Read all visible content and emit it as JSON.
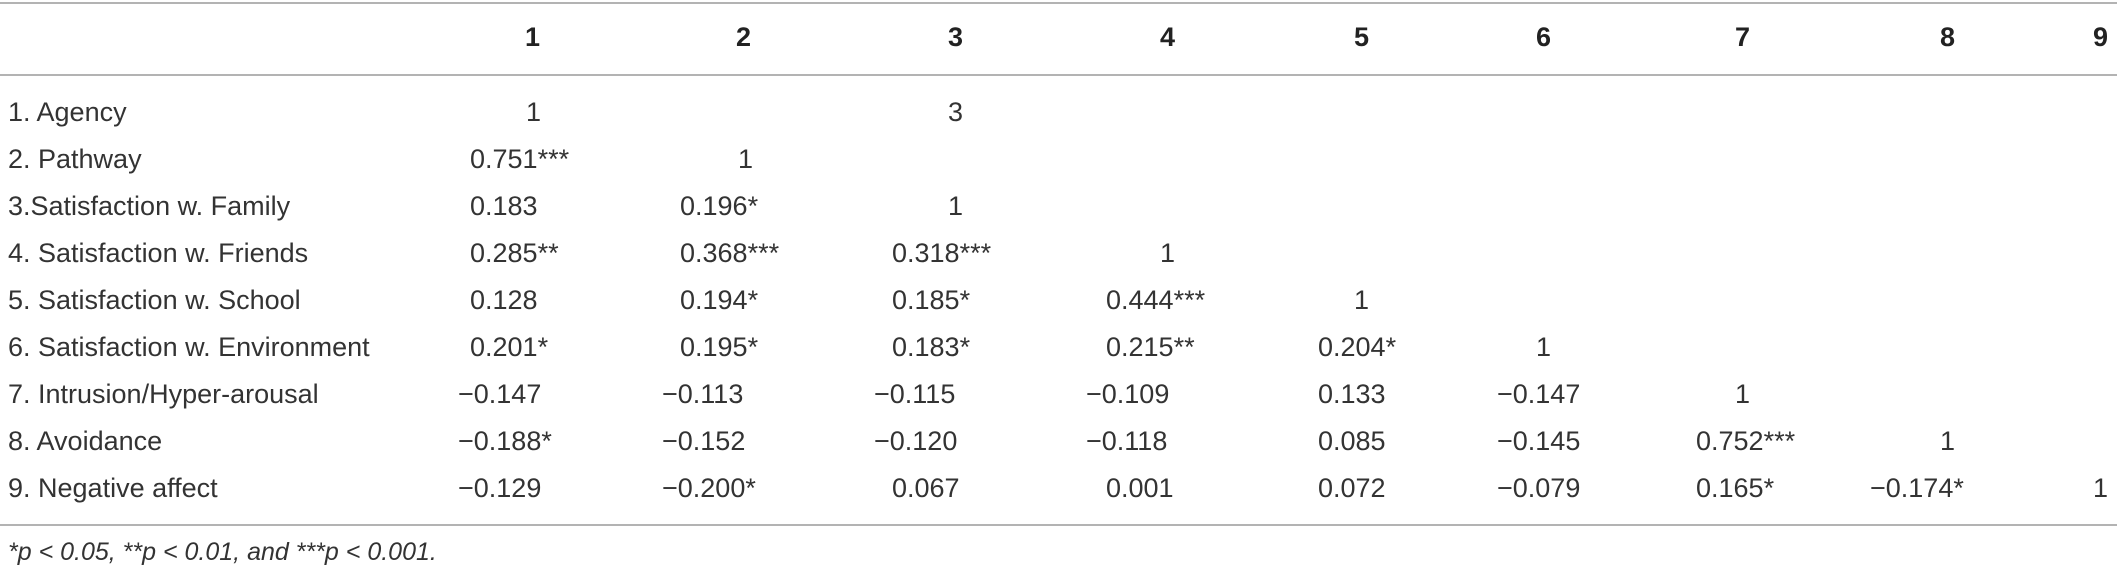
{
  "table": {
    "headers": [
      "1",
      "2",
      "3",
      "4",
      "5",
      "6",
      "7",
      "8",
      "9"
    ],
    "rows": [
      {
        "label": "1. Agency",
        "cells": [
          "1",
          "",
          "3",
          "",
          "",
          "",
          "",
          "",
          ""
        ]
      },
      {
        "label": "2. Pathway",
        "cells": [
          "0.751***",
          "1",
          "",
          "",
          "",
          "",
          "",
          "",
          ""
        ]
      },
      {
        "label": "3.Satisfaction w. Family",
        "cells": [
          "0.183",
          "0.196*",
          "1",
          "",
          "",
          "",
          "",
          "",
          ""
        ]
      },
      {
        "label": "4. Satisfaction w. Friends",
        "cells": [
          "0.285**",
          "0.368***",
          "0.318***",
          "1",
          "",
          "",
          "",
          "",
          ""
        ]
      },
      {
        "label": "5. Satisfaction w. School",
        "cells": [
          "0.128",
          "0.194*",
          "0.185*",
          "0.444***",
          "1",
          "",
          "",
          "",
          ""
        ]
      },
      {
        "label": "6. Satisfaction w. Environment",
        "cells": [
          "0.201*",
          "0.195*",
          "0.183*",
          "0.215**",
          "0.204*",
          "1",
          "",
          "",
          ""
        ]
      },
      {
        "label": "7. Intrusion/Hyper-arousal",
        "cells": [
          "−0.147",
          "−0.113",
          "−0.115",
          "−0.109",
          "0.133",
          "−0.147",
          "1",
          "",
          ""
        ]
      },
      {
        "label": "8. Avoidance",
        "cells": [
          "−0.188*",
          "−0.152",
          "−0.120",
          "−0.118",
          "0.085",
          "−0.145",
          "0.752***",
          "1",
          ""
        ]
      },
      {
        "label": "9. Negative affect",
        "cells": [
          "−0.129",
          "−0.200*",
          "0.067",
          "0.001",
          "0.072",
          "−0.079",
          "0.165*",
          "−0.174*",
          "1"
        ]
      }
    ]
  },
  "footnote": "*p < 0.05, **p < 0.01, and ***p < 0.001."
}
